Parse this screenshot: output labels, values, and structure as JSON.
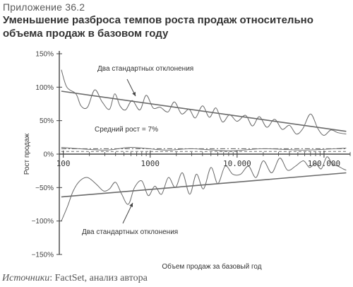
{
  "appendix_label": "Приложение 36.2",
  "title": "Уменьшение разброса темпов роста продаж относительно объема продаж в базовом году",
  "source": {
    "prefix": "Источники",
    "text": ": FactSet, анализ автора"
  },
  "chart_data": {
    "type": "line",
    "title": "Уменьшение разброса темпов роста продаж относительно объема продаж в базовом году",
    "xlabel": "Объем продаж за базовый год",
    "ylabel": "Рост продаж",
    "x_scale": "log",
    "xlim": [
      90,
      200000
    ],
    "ylim": [
      -150,
      150
    ],
    "x_ticks": [
      100,
      1000,
      10000,
      100000
    ],
    "x_tick_labels": [
      "100",
      "1000",
      "10.000",
      "100.000"
    ],
    "y_ticks": [
      150,
      100,
      50,
      0,
      -50,
      -100,
      -150
    ],
    "y_tick_labels": [
      "150%",
      "100%",
      "50%",
      "0%",
      "−50%",
      "−100%",
      "−150%"
    ],
    "grid": false,
    "annotations": [
      "Два стандартных отклонения",
      "Средний рост = 7%",
      "Два стандартных отклонения"
    ],
    "series": [
      {
        "role": "upper-band",
        "points": [
          [
            95,
            126
          ],
          [
            110,
            100
          ],
          [
            140,
            90
          ],
          [
            160,
            72
          ],
          [
            190,
            70
          ],
          [
            230,
            96
          ],
          [
            280,
            78
          ],
          [
            340,
            67
          ],
          [
            390,
            90
          ],
          [
            450,
            72
          ],
          [
            520,
            66
          ],
          [
            620,
            80
          ],
          [
            760,
            66
          ],
          [
            900,
            88
          ],
          [
            1080,
            69
          ],
          [
            1300,
            70
          ],
          [
            1600,
            63
          ],
          [
            1900,
            78
          ],
          [
            2300,
            60
          ],
          [
            2800,
            67
          ],
          [
            3300,
            54
          ],
          [
            4000,
            72
          ],
          [
            4800,
            55
          ],
          [
            5700,
            69
          ],
          [
            6800,
            48
          ],
          [
            8200,
            59
          ],
          [
            10000,
            49
          ],
          [
            12500,
            58
          ],
          [
            15000,
            42
          ],
          [
            18000,
            56
          ],
          [
            22000,
            40
          ],
          [
            27000,
            52
          ],
          [
            33000,
            37
          ],
          [
            40000,
            43
          ],
          [
            48000,
            30
          ],
          [
            57000,
            38
          ],
          [
            70000,
            60
          ],
          [
            85000,
            38
          ],
          [
            100000,
            28
          ],
          [
            120000,
            36
          ],
          [
            145000,
            32
          ],
          [
            180000,
            30
          ]
        ]
      },
      {
        "role": "upper-trend",
        "points": [
          [
            95,
            94
          ],
          [
            180000,
            34
          ]
        ]
      },
      {
        "role": "lower-band",
        "points": [
          [
            95,
            -100
          ],
          [
            112,
            -78
          ],
          [
            130,
            -55
          ],
          [
            155,
            -40
          ],
          [
            190,
            -35
          ],
          [
            240,
            -45
          ],
          [
            290,
            -55
          ],
          [
            340,
            -52
          ],
          [
            400,
            -42
          ],
          [
            470,
            -60
          ],
          [
            560,
            -75
          ],
          [
            660,
            -50
          ],
          [
            800,
            -40
          ],
          [
            950,
            -62
          ],
          [
            1130,
            -48
          ],
          [
            1350,
            -60
          ],
          [
            1620,
            -35
          ],
          [
            1950,
            -50
          ],
          [
            2350,
            -28
          ],
          [
            2850,
            -60
          ],
          [
            3400,
            -30
          ],
          [
            4100,
            -52
          ],
          [
            5000,
            -20
          ],
          [
            6000,
            -44
          ],
          [
            7300,
            -18
          ],
          [
            8900,
            -30
          ],
          [
            11000,
            -30
          ],
          [
            13500,
            -18
          ],
          [
            16500,
            -35
          ],
          [
            20000,
            -10
          ],
          [
            25000,
            -28
          ],
          [
            31000,
            -6
          ],
          [
            38000,
            -24
          ],
          [
            47000,
            -18
          ],
          [
            58000,
            -10
          ],
          [
            68000,
            -20
          ],
          [
            80000,
            -14
          ],
          [
            93000,
            -22
          ],
          [
            108000,
            -4
          ],
          [
            125000,
            -15
          ],
          [
            145000,
            -18
          ],
          [
            165000,
            -22
          ],
          [
            180000,
            -24
          ]
        ]
      },
      {
        "role": "lower-trend",
        "points": [
          [
            95,
            -64
          ],
          [
            180000,
            -28
          ]
        ]
      },
      {
        "role": "mean-dashdot",
        "points": [
          [
            95,
            8
          ],
          [
            180000,
            8
          ]
        ]
      },
      {
        "role": "mean-dashed",
        "points": [
          [
            95,
            4
          ],
          [
            180000,
            4
          ]
        ]
      },
      {
        "role": "mean-wavy",
        "points": [
          [
            95,
            10
          ],
          [
            300,
            6
          ],
          [
            600,
            10
          ],
          [
            1500,
            6
          ],
          [
            3000,
            8
          ],
          [
            8000,
            5
          ],
          [
            20000,
            8
          ],
          [
            60000,
            6
          ],
          [
            180000,
            9
          ]
        ]
      }
    ]
  },
  "colors": {
    "line": "#6a6a6a",
    "axis": "#444444"
  }
}
